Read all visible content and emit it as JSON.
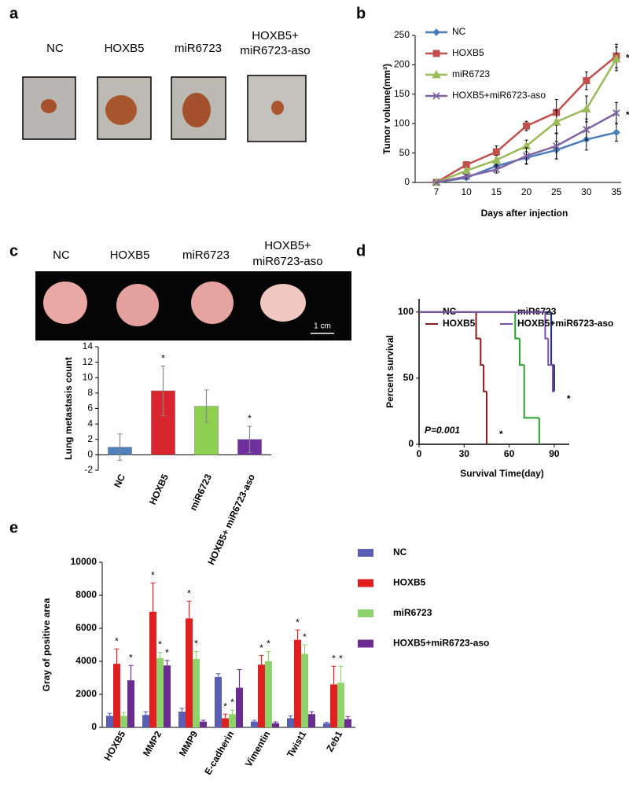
{
  "panel_a": {
    "panel": "a",
    "labels": [
      [
        "NC"
      ],
      [
        "HOXB5"
      ],
      [
        "miR6723"
      ],
      [
        "HOXB5+",
        "miR6723-aso"
      ]
    ]
  },
  "panel_c_images": {
    "panel": "c",
    "labels": [
      [
        "NC"
      ],
      [
        "HOXB5"
      ],
      [
        "miR6723"
      ],
      [
        "HOXB5+",
        "miR6723-aso"
      ]
    ],
    "scale_bar": "1 cm"
  },
  "chart_data": [
    {
      "type": "line",
      "panel": "b",
      "ylabel": "Tumor volume(mm³)",
      "xlabel": "Days after injection",
      "categories": [
        "7",
        "10",
        "15",
        "20",
        "25",
        "30",
        "35"
      ],
      "ylim": [
        0,
        250
      ],
      "yticks": [
        0,
        50,
        100,
        150,
        200,
        250
      ],
      "series": [
        {
          "name": "NC",
          "color": "#4a7ebb",
          "marker": "diamond",
          "values": [
            0,
            8,
            28,
            42,
            55,
            73,
            85
          ],
          "errors": [
            0,
            3,
            8,
            10,
            15,
            18,
            15
          ]
        },
        {
          "name": "HOXB5",
          "color": "#c0504d",
          "marker": "square",
          "values": [
            0,
            30,
            52,
            96,
            119,
            173,
            215
          ],
          "errors": [
            0,
            5,
            10,
            8,
            22,
            15,
            20
          ],
          "end_label": "*"
        },
        {
          "name": "miR6723",
          "color": "#9bbb59",
          "marker": "triangle",
          "values": [
            0,
            20,
            38,
            62,
            103,
            125,
            210
          ],
          "errors": [
            0,
            4,
            8,
            10,
            20,
            22,
            20
          ]
        },
        {
          "name": "HOXB5+miR6723-aso",
          "color": "#8064a2",
          "marker": "x",
          "values": [
            0,
            10,
            22,
            45,
            62,
            90,
            118
          ],
          "errors": [
            0,
            3,
            6,
            14,
            22,
            18,
            18
          ],
          "end_label": "*"
        }
      ]
    },
    {
      "type": "bar",
      "ylabel": "Lung metastasis count",
      "categories": [
        "NC",
        "HOXB5",
        "miR6723",
        "HOXB5+ miR6723-aso"
      ],
      "values": [
        1,
        8.3,
        6.3,
        2
      ],
      "errors": [
        1.7,
        3.2,
        2.1,
        1.7
      ],
      "colors": [
        "#4f81bd",
        "#d9262e",
        "#8fcf4f",
        "#6f2f9f"
      ],
      "annotations": [
        null,
        "*",
        null,
        "*"
      ],
      "ylim": [
        -2,
        14
      ],
      "yticks": [
        -2,
        0,
        2,
        4,
        6,
        8,
        10,
        12,
        14
      ]
    },
    {
      "type": "step",
      "panel": "d",
      "ylabel": "Percent survival",
      "xlabel": "Survival Time(day)",
      "annotation": "P=0.001",
      "xlim": [
        0,
        100
      ],
      "xticks": [
        0,
        30,
        60,
        90
      ],
      "ylim": [
        0,
        110
      ],
      "yticks": [
        0,
        50,
        100
      ],
      "series": [
        {
          "name": "NC",
          "color": "#1f2d7a",
          "x": [
            0,
            88,
            90
          ],
          "y": [
            100,
            60,
            40
          ]
        },
        {
          "name": "HOXB5",
          "color": "#8b1a1a",
          "x": [
            0,
            38,
            41,
            43,
            45
          ],
          "y": [
            100,
            80,
            60,
            40,
            0
          ],
          "end_label": "*"
        },
        {
          "name": "miR6723",
          "color": "#2ca02c",
          "x": [
            0,
            64,
            67,
            70,
            80
          ],
          "y": [
            100,
            80,
            60,
            20,
            0
          ]
        },
        {
          "name": "HOXB5+miR6723-aso",
          "color": "#7b4fa6",
          "x": [
            0,
            84,
            86,
            89,
            90
          ],
          "y": [
            100,
            80,
            60,
            40,
            40
          ],
          "end_label": "*"
        }
      ]
    },
    {
      "type": "bar",
      "panel": "e",
      "ylabel": "Gray of positive area",
      "categories": [
        "HOXB5",
        "MMP2",
        "MMP9",
        "E-cadherin",
        "Vimentin",
        "Twist1",
        "Zeb1"
      ],
      "ylim": [
        0,
        10000
      ],
      "yticks": [
        0,
        2000,
        4000,
        6000,
        8000,
        10000
      ],
      "series": [
        {
          "name": "NC",
          "color": "#5b5fb4",
          "values": [
            700,
            750,
            950,
            3050,
            350,
            550,
            250
          ],
          "errors": [
            150,
            200,
            200,
            200,
            80,
            150,
            60
          ]
        },
        {
          "name": "HOXB5",
          "color": "#e02020",
          "values": [
            3850,
            7000,
            6600,
            550,
            3800,
            5300,
            2600
          ],
          "errors": [
            900,
            1750,
            1050,
            250,
            550,
            600,
            1100
          ],
          "annotations": [
            "*",
            "*",
            "*",
            "*",
            "*",
            "*",
            "*"
          ]
        },
        {
          "name": "miR6723",
          "color": "#8ed36b",
          "values": [
            700,
            4200,
            4150,
            800,
            4000,
            4450,
            2700
          ],
          "errors": [
            200,
            350,
            450,
            250,
            600,
            550,
            1000
          ],
          "annotations": [
            null,
            "*",
            "*",
            "*",
            "*",
            "*",
            "*"
          ]
        },
        {
          "name": "HOXB5+miR6723-aso",
          "color": "#6a2c8f",
          "values": [
            2850,
            3750,
            350,
            2400,
            250,
            800,
            500
          ],
          "errors": [
            900,
            300,
            80,
            1100,
            80,
            150,
            150
          ],
          "annotations": [
            "*",
            "*",
            null,
            null,
            null,
            null,
            null
          ]
        }
      ]
    }
  ]
}
